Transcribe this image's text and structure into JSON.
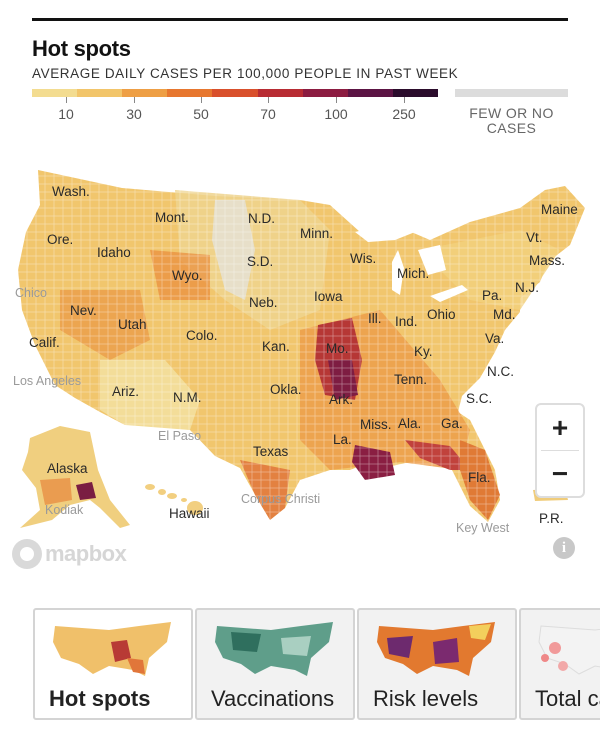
{
  "header": {
    "title": "Hot spots",
    "subtitle": "AVERAGE DAILY CASES PER 100,000 PEOPLE IN PAST WEEK"
  },
  "legend": {
    "colors": [
      "#f3dc90",
      "#f2c56a",
      "#ee9f45",
      "#e7772f",
      "#d9502c",
      "#b82c33",
      "#8c1c41",
      "#5c1444",
      "#2b0c2c"
    ],
    "ticks": [
      {
        "label": "10",
        "value": 10
      },
      {
        "label": "30",
        "value": 30
      },
      {
        "label": "50",
        "value": 50
      },
      {
        "label": "70",
        "value": 70
      },
      {
        "label": "100",
        "value": 100
      },
      {
        "label": "250",
        "value": 250
      }
    ],
    "few_label_line1": "FEW OR NO",
    "few_label_line2": "CASES",
    "few_color": "#dcdcdc"
  },
  "map": {
    "state_labels": {
      "wash": "Wash.",
      "ore": "Ore.",
      "idaho": "Idaho",
      "mont": "Mont.",
      "wyo": "Wyo.",
      "nd": "N.D.",
      "sd": "S.D.",
      "minn": "Minn.",
      "wis": "Wis.",
      "mich": "Mich.",
      "maine": "Maine",
      "vt": "Vt.",
      "mass": "Mass.",
      "nj": "N.J.",
      "pa": "Pa.",
      "md": "Md.",
      "va": "Va.",
      "nc": "N.C.",
      "sc": "S.C.",
      "ga": "Ga.",
      "fla": "Fla.",
      "ala": "Ala.",
      "miss": "Miss.",
      "la": "La.",
      "ark": "Ark.",
      "tenn": "Tenn.",
      "ky": "Ky.",
      "ohio": "Ohio",
      "ind": "Ind.",
      "ill": "Ill.",
      "iowa": "Iowa",
      "neb": "Neb.",
      "kan": "Kan.",
      "mo": "Mo.",
      "okla": "Okla.",
      "texas": "Texas",
      "nm": "N.M.",
      "colo": "Colo.",
      "utah": "Utah",
      "nev": "Nev.",
      "calif": "Calif.",
      "ariz": "Ariz.",
      "alaska": "Alaska",
      "hawaii": "Hawaii",
      "pr": "P.R."
    },
    "city_labels": {
      "chico": "Chico",
      "los_angeles": "Los Angeles",
      "el_paso": "El Paso",
      "corpus_christi": "Corpus Christi",
      "kodiak": "Kodiak",
      "key_west": "Key West"
    },
    "attribution": "mapbox"
  },
  "zoom": {
    "in": "+",
    "out": "−"
  },
  "info_icon": "i",
  "tabs": [
    {
      "label": "Hot spots",
      "active": true
    },
    {
      "label": "Vaccinations",
      "active": false
    },
    {
      "label": "Risk levels",
      "active": false
    },
    {
      "label": "Total cases",
      "active": false
    }
  ]
}
